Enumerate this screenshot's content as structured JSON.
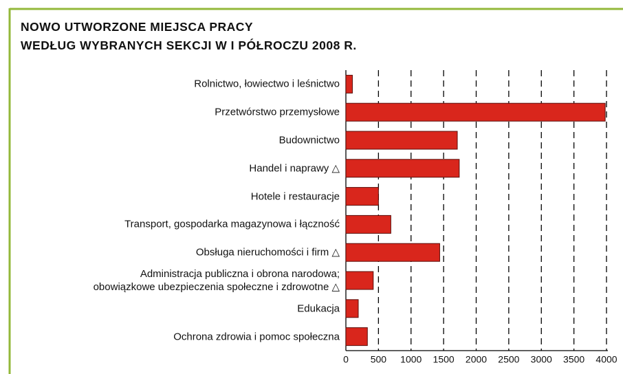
{
  "chart_data": {
    "type": "bar",
    "orientation": "horizontal",
    "title": "NOWO UTWORZONE MIEJSCA PRACY\nWEDŁUG WYBRANYCH SEKCJI W I PÓŁROCZU 2008 R.",
    "categories": [
      "Rolnictwo, łowiectwo i leśnictwo",
      "Przetwórstwo przemysłowe",
      "Budownictwo",
      "Handel i naprawy △",
      "Hotele i restauracje",
      "Transport, gospodarka magazynowa i łączność",
      "Obsługa nieruchomości i firm △",
      "Administracja publiczna i obrona narodowa;\nobowiązkowe ubezpieczenia społeczne i zdrowotne △",
      "Edukacja",
      "Ochrona zdrowia i pomoc społeczna"
    ],
    "values": [
      100,
      3980,
      1710,
      1740,
      500,
      690,
      1440,
      420,
      190,
      330
    ],
    "color": "#d9261c",
    "xlim": [
      0,
      4000
    ],
    "xticks": [
      0,
      500,
      1000,
      1500,
      2000,
      2500,
      3000,
      3500,
      4000
    ],
    "grid": true
  }
}
